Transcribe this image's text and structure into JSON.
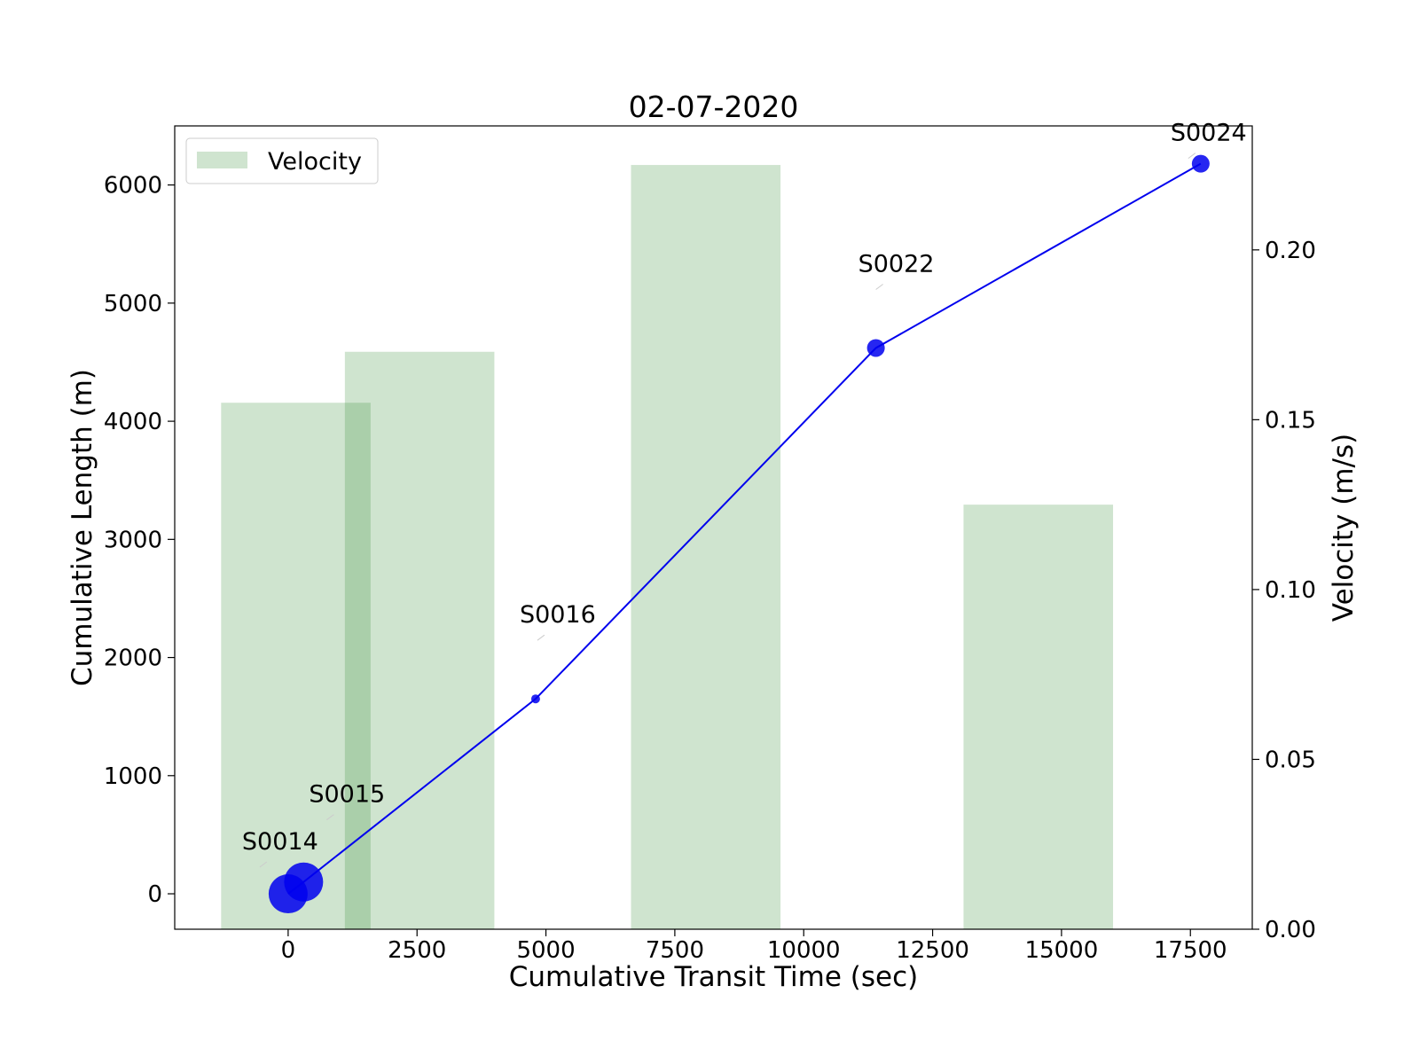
{
  "chart_data": {
    "type": "bar+line",
    "title": "02-07-2020",
    "xlabel": "Cumulative Transit Time (sec)",
    "ylabel_left": "Cumulative Length (m)",
    "ylabel_right": "Velocity (m/s)",
    "xlim": [
      -2200,
      18700
    ],
    "ylim_left": [
      -300,
      6500
    ],
    "ylim_right": [
      0.0,
      0.2365
    ],
    "x_ticks": [
      0,
      2500,
      5000,
      7500,
      10000,
      12500,
      15000,
      17500
    ],
    "y_left_ticks": [
      0,
      1000,
      2000,
      3000,
      4000,
      5000,
      6000
    ],
    "y_right_ticks": [
      0.0,
      0.05,
      0.1,
      0.15,
      0.2
    ],
    "y_right_tick_labels": [
      "0.00",
      "0.05",
      "0.10",
      "0.15",
      "0.20"
    ],
    "legend": {
      "location": "upper-left",
      "entries": [
        "Velocity"
      ]
    },
    "grid": false,
    "colors": {
      "bars": "#2e8b2e",
      "line": "#0000ee",
      "markers": "#0000ee"
    },
    "bars": {
      "name": "Velocity",
      "width": 2900,
      "opacity": 0.23,
      "x_centers": [
        150,
        2550,
        8100,
        14550
      ],
      "values": [
        0.155,
        0.17,
        0.225,
        0.125
      ]
    },
    "line_series": {
      "x": [
        0,
        300,
        4800,
        11400,
        17700
      ],
      "y": [
        0,
        100,
        1650,
        4620,
        6180
      ],
      "labels": [
        "S0014",
        "S0015",
        "S0016",
        "S0022",
        "S0024"
      ],
      "marker_sizes": [
        22,
        22,
        5,
        10,
        10
      ]
    }
  }
}
